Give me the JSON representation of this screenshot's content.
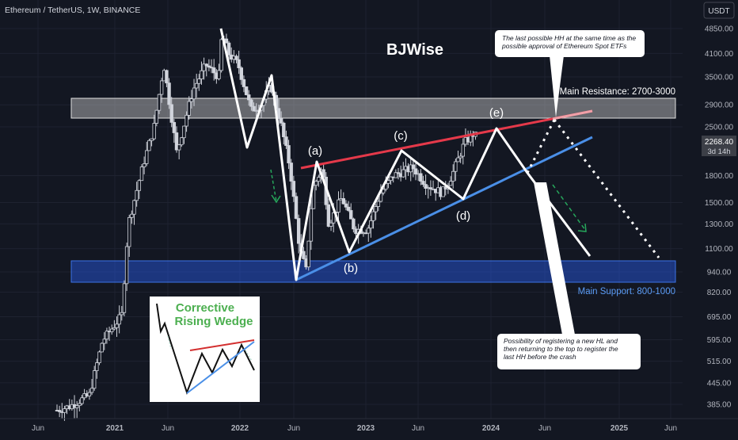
{
  "symbol_title": "Ethereum / TetherUS, 1W, BINANCE",
  "currency_button": "USDT",
  "author": "BJWise",
  "price_axis": {
    "ticks": [
      "4850.00",
      "4100.00",
      "3500.00",
      "2900.00",
      "2500.00",
      "1800.00",
      "1500.00",
      "1300.00",
      "1100.00",
      "940.00",
      "820.00",
      "695.00",
      "595.00",
      "515.00",
      "445.00",
      "385.00"
    ]
  },
  "last_price": {
    "value": "2268.40",
    "countdown": "3d 14h"
  },
  "time_axis": {
    "ticks": [
      "Jun",
      "2021",
      "Jun",
      "2022",
      "Jun",
      "2023",
      "Jun",
      "2024",
      "Jun",
      "2025",
      "Jun"
    ]
  },
  "zones": {
    "resistance": {
      "label": "Main Resistance: 2700-3000"
    },
    "support": {
      "label": "Main Support: 800-1000"
    }
  },
  "wave_labels": {
    "a": "(a)",
    "b": "(b)",
    "c": "(c)",
    "d": "(d)",
    "e": "(e)"
  },
  "callouts": {
    "top": "The last possible HH at the same time as the possible approval of Ethereum Spot ETFs",
    "bottom": "Possibility of registering a new HL and then returning to the top to register the last HH before the crash"
  },
  "inset": {
    "title_line1": "Corrective",
    "title_line2": "Rising Wedge"
  },
  "colors": {
    "background": "#131722",
    "candle": "#d1d4dc",
    "resistance_line": "#e5394a",
    "support_line": "#4a8fe7",
    "resistance_zone": "#d9d9d9",
    "support_zone": "#2962ff",
    "arrow_green": "#26a65b",
    "inset_title": "#4caf50",
    "support_label": "#5b9cf6"
  },
  "chart_data": {
    "type": "candlestick",
    "title": "Ethereum / TetherUS, 1W, BINANCE",
    "y_scale": "log",
    "ylim": [
      350,
      5400
    ],
    "x_ticks": [
      "Jun",
      "2021",
      "Jun",
      "2022",
      "Jun",
      "2023",
      "Jun",
      "2024",
      "Jun",
      "2025",
      "Jun"
    ],
    "price_path": [
      [
        0,
        370
      ],
      [
        0.2,
        380
      ],
      [
        0.5,
        410
      ],
      [
        0.7,
        590
      ],
      [
        1,
        700
      ],
      [
        1.1,
        1300
      ],
      [
        1.35,
        2000
      ],
      [
        1.5,
        2500
      ],
      [
        1.65,
        3800
      ],
      [
        1.85,
        2100
      ],
      [
        2.1,
        3200
      ],
      [
        2.3,
        3800
      ],
      [
        2.5,
        3500
      ],
      [
        2.55,
        4700
      ],
      [
        2.65,
        4100
      ],
      [
        2.8,
        3800
      ],
      [
        3,
        2800
      ],
      [
        3.15,
        2900
      ],
      [
        3.3,
        3300
      ],
      [
        3.45,
        2600
      ],
      [
        3.6,
        1900
      ],
      [
        3.75,
        1100
      ],
      [
        3.85,
        950
      ],
      [
        3.95,
        1650
      ],
      [
        4.1,
        1900
      ],
      [
        4.2,
        1300
      ],
      [
        4.4,
        1550
      ],
      [
        4.6,
        1250
      ],
      [
        4.8,
        1250
      ],
      [
        5,
        1600
      ],
      [
        5.2,
        1800
      ],
      [
        5.35,
        1850
      ],
      [
        5.5,
        1900
      ],
      [
        5.7,
        1700
      ],
      [
        5.95,
        1600
      ],
      [
        6.1,
        1800
      ],
      [
        6.3,
        2250
      ],
      [
        6.45,
        2400
      ],
      [
        6.5,
        2270
      ]
    ],
    "wave_points": [
      {
        "label": "(a)",
        "price": 2000
      },
      {
        "label": "(b)",
        "price": 1100
      },
      {
        "label": "(c)",
        "price": 2100
      },
      {
        "label": "(d)",
        "price": 1550
      },
      {
        "label": "(e)",
        "price": 2550
      }
    ],
    "annotations": [
      {
        "text": "Main Resistance: 2700-3000",
        "range": [
          2700,
          3000
        ]
      },
      {
        "text": "Main Support: 800-1000",
        "range": [
          800,
          1000
        ]
      },
      {
        "text": "BJWise"
      }
    ]
  }
}
